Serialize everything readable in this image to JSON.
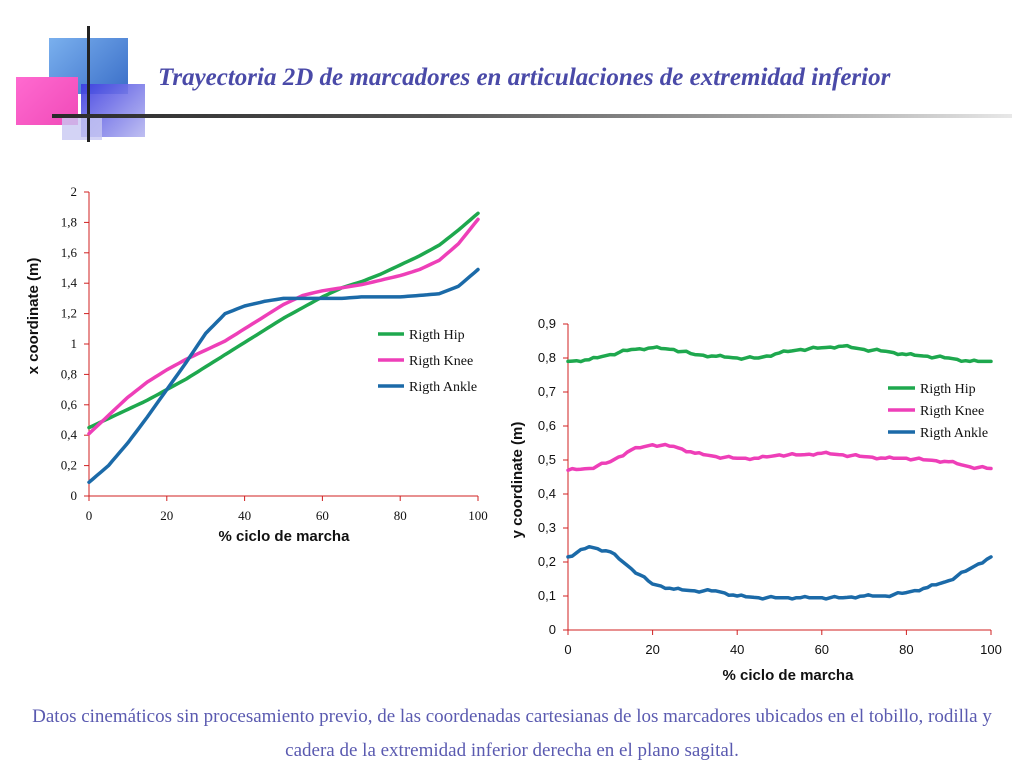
{
  "title": "Trayectoria 2D de marcadores en articulaciones de extremidad inferior",
  "caption": "Datos cinemáticos sin procesamiento previo, de las coordenadas cartesianas de los marcadores ubicados en el tobillo, rodilla y cadera de la extremidad inferior derecha en el plano sagital.",
  "colors": {
    "hip": "#1ea84e",
    "knee": "#ee3fb8",
    "ankle": "#1b6aa8",
    "title": "#4a4aa8",
    "axis": "#d02020"
  },
  "chart_data": [
    {
      "type": "line",
      "title": "",
      "xlabel": "% ciclo de marcha",
      "ylabel": "x coordinate (m)",
      "xlim": [
        0,
        100
      ],
      "ylim": [
        0,
        2
      ],
      "xticks": [
        "0",
        "20",
        "40",
        "60",
        "80",
        "100"
      ],
      "yticks": [
        "0",
        "0,2",
        "0,4",
        "0,6",
        "0,8",
        "1",
        "1,2",
        "1,4",
        "1,6",
        "1,8",
        "2"
      ],
      "legend_position": "right",
      "series": [
        {
          "name": "Rigth Hip",
          "color": "#1ea84e",
          "x": [
            0,
            5,
            10,
            15,
            20,
            25,
            30,
            35,
            40,
            45,
            50,
            55,
            60,
            65,
            70,
            75,
            80,
            85,
            90,
            95,
            100
          ],
          "y": [
            0.45,
            0.51,
            0.57,
            0.63,
            0.7,
            0.77,
            0.85,
            0.93,
            1.01,
            1.09,
            1.17,
            1.24,
            1.31,
            1.37,
            1.41,
            1.46,
            1.52,
            1.58,
            1.65,
            1.75,
            1.86
          ]
        },
        {
          "name": "Rigth Knee",
          "color": "#ee3fb8",
          "x": [
            0,
            5,
            10,
            15,
            20,
            25,
            30,
            35,
            40,
            45,
            50,
            55,
            60,
            65,
            70,
            75,
            80,
            85,
            90,
            95,
            100
          ],
          "y": [
            0.41,
            0.53,
            0.65,
            0.75,
            0.83,
            0.9,
            0.96,
            1.02,
            1.1,
            1.18,
            1.26,
            1.32,
            1.35,
            1.37,
            1.39,
            1.42,
            1.45,
            1.49,
            1.55,
            1.66,
            1.82
          ]
        },
        {
          "name": "Rigth Ankle",
          "color": "#1b6aa8",
          "x": [
            0,
            5,
            10,
            15,
            20,
            25,
            30,
            35,
            40,
            45,
            50,
            55,
            60,
            65,
            70,
            75,
            80,
            85,
            90,
            95,
            100
          ],
          "y": [
            0.09,
            0.2,
            0.35,
            0.52,
            0.7,
            0.88,
            1.07,
            1.2,
            1.25,
            1.28,
            1.3,
            1.3,
            1.3,
            1.3,
            1.31,
            1.31,
            1.31,
            1.32,
            1.33,
            1.38,
            1.49
          ]
        }
      ]
    },
    {
      "type": "line",
      "title": "",
      "xlabel": "% ciclo de marcha",
      "ylabel": "y coordinate (m)",
      "xlim": [
        0,
        100
      ],
      "ylim": [
        0,
        0.9
      ],
      "xticks": [
        "0",
        "20",
        "40",
        "60",
        "80",
        "100"
      ],
      "yticks": [
        "0",
        "0,1",
        "0,2",
        "0,3",
        "0,4",
        "0,5",
        "0,6",
        "0,7",
        "0,8",
        "0,9"
      ],
      "legend_position": "right",
      "series": [
        {
          "name": "Rigth Hip",
          "color": "#1ea84e",
          "x": [
            0,
            5,
            10,
            15,
            20,
            25,
            30,
            35,
            40,
            45,
            50,
            55,
            60,
            65,
            70,
            75,
            80,
            85,
            90,
            95,
            100
          ],
          "y": [
            0.79,
            0.795,
            0.81,
            0.825,
            0.83,
            0.825,
            0.81,
            0.805,
            0.8,
            0.8,
            0.815,
            0.825,
            0.83,
            0.835,
            0.825,
            0.82,
            0.81,
            0.805,
            0.8,
            0.79,
            0.79
          ]
        },
        {
          "name": "Rigth Knee",
          "color": "#ee3fb8",
          "x": [
            0,
            5,
            10,
            15,
            20,
            25,
            30,
            35,
            40,
            45,
            50,
            55,
            60,
            65,
            70,
            75,
            80,
            85,
            90,
            95,
            100
          ],
          "y": [
            0.47,
            0.475,
            0.495,
            0.53,
            0.545,
            0.54,
            0.52,
            0.51,
            0.505,
            0.505,
            0.515,
            0.515,
            0.52,
            0.515,
            0.51,
            0.505,
            0.505,
            0.5,
            0.495,
            0.48,
            0.475
          ]
        },
        {
          "name": "Rigth Ankle",
          "color": "#1b6aa8",
          "x": [
            0,
            5,
            10,
            15,
            20,
            25,
            30,
            35,
            40,
            45,
            50,
            55,
            60,
            65,
            70,
            75,
            80,
            85,
            90,
            95,
            100
          ],
          "y": [
            0.215,
            0.245,
            0.23,
            0.18,
            0.135,
            0.12,
            0.115,
            0.115,
            0.1,
            0.095,
            0.095,
            0.095,
            0.095,
            0.095,
            0.1,
            0.1,
            0.11,
            0.125,
            0.145,
            0.18,
            0.215
          ]
        }
      ]
    }
  ]
}
